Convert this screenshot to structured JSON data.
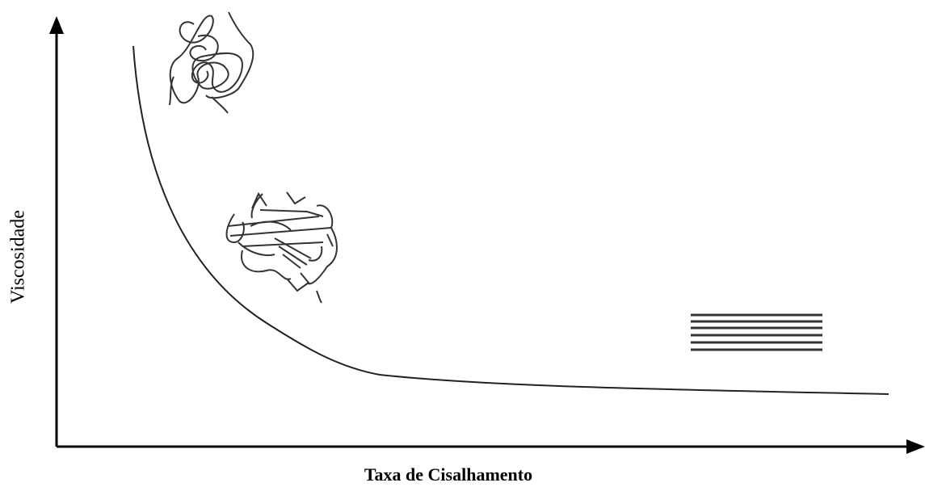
{
  "y_axis_label": "Viscosidade",
  "x_axis_label": "Taxa de Cisalhamento"
}
